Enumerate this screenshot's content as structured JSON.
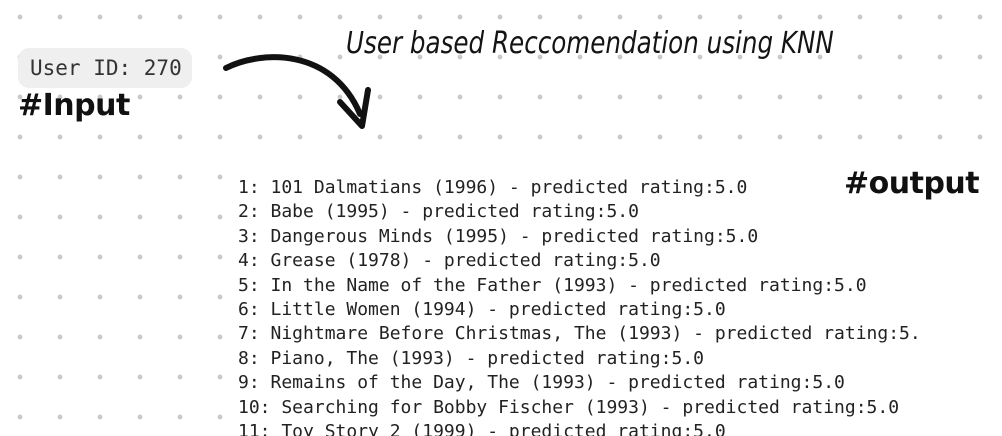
{
  "user_chip": "User ID: 270",
  "input_tag": "#Input",
  "title": "User based Reccomendation using KNN",
  "output_tag": "#output",
  "recommendations": [
    "1: 101 Dalmatians (1996) - predicted rating:5.0",
    "2: Babe (1995) - predicted rating:5.0",
    "3: Dangerous Minds (1995) - predicted rating:5.0",
    "4: Grease (1978) - predicted rating:5.0",
    "5: In the Name of the Father (1993) - predicted rating:5.0",
    "6: Little Women (1994) - predicted rating:5.0",
    "7: Nightmare Before Christmas, The (1993) - predicted rating:5.",
    "8: Piano, The (1993) - predicted rating:5.0",
    "9: Remains of the Day, The (1993) - predicted rating:5.0",
    "10: Searching for Bobby Fischer (1993) - predicted rating:5.0",
    "11: Toy Story 2 (1999) - predicted rating:5.0"
  ],
  "colors": {
    "ink": "#141414",
    "chip_background": "#efefef",
    "dot_grid": "#c9c9c9"
  },
  "icons": {
    "arrow": "curved-arrow-icon"
  }
}
